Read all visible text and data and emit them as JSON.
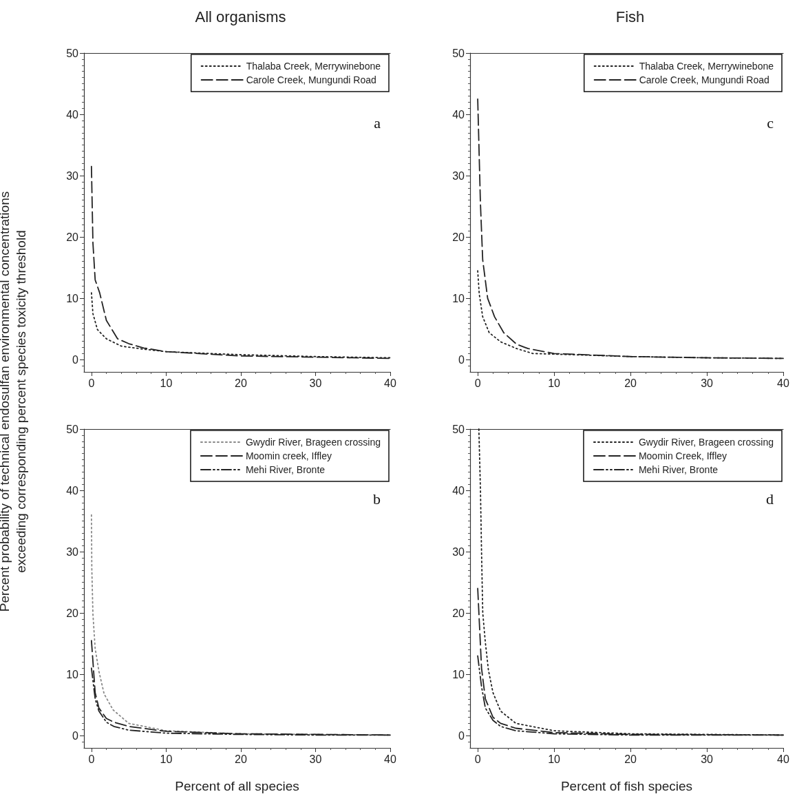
{
  "chart_data": [
    {
      "type": "line",
      "title": "All organisms",
      "ylabel": "Percent probability of technical endosulfan environmental concentrations\nexceeding corresponding percent species toxicity threshold",
      "annotations": [
        "a"
      ],
      "xlim": [
        -1,
        40
      ],
      "ylim": [
        -2,
        50
      ],
      "xticks": [
        0,
        10,
        20,
        30,
        40
      ],
      "yticks": [
        0,
        10,
        20,
        30,
        40,
        50
      ],
      "grid": false,
      "legend": "top right",
      "marker": "none",
      "series": [
        {
          "name": "Thalaba Creek, Merrywinebone",
          "color": "#222222",
          "line_style": "dotted",
          "x": [
            0,
            0.2,
            0.8,
            2,
            4,
            7,
            10,
            20,
            30,
            40
          ],
          "values": [
            10.9,
            7.5,
            4.9,
            3.4,
            2.2,
            1.7,
            1.3,
            0.8,
            0.5,
            0.3
          ]
        },
        {
          "name": "Carole Creek, Mungundi Road",
          "color": "#222222",
          "line_style": "dashed",
          "x": [
            0,
            0.2,
            0.5,
            1.1,
            2,
            3.5,
            5,
            7,
            10,
            20,
            30,
            40
          ],
          "values": [
            31.5,
            19,
            13,
            10.9,
            6.4,
            3.4,
            2.6,
            1.9,
            1.3,
            0.6,
            0.4,
            0.2
          ]
        }
      ]
    },
    {
      "type": "line",
      "title": "Fish",
      "annotations": [
        "c"
      ],
      "xlim": [
        -1,
        40
      ],
      "ylim": [
        -2,
        50
      ],
      "xticks": [
        0,
        10,
        20,
        30,
        40
      ],
      "yticks": [
        0,
        10,
        20,
        30,
        40,
        50
      ],
      "grid": false,
      "legend": "top right",
      "marker": "none",
      "series": [
        {
          "name": "Thalaba Creek, Merrywinebone",
          "color": "#222222",
          "line_style": "dotted",
          "x": [
            0,
            0.2,
            0.65,
            1.5,
            3,
            5.1,
            7.2,
            10,
            20,
            30,
            40
          ],
          "values": [
            14.5,
            10.7,
            7,
            4.4,
            2.9,
            1.8,
            1.0,
            0.9,
            0.5,
            0.3,
            0.2
          ]
        },
        {
          "name": "Carole Creek, Mungundi Road",
          "color": "#222222",
          "line_style": "dashed",
          "x": [
            0,
            0.35,
            0.65,
            1.3,
            2.2,
            3.4,
            5.1,
            6.6,
            10,
            20,
            30,
            40
          ],
          "values": [
            42.5,
            25.7,
            16.3,
            10,
            7,
            4.4,
            2.5,
            1.8,
            1.0,
            0.5,
            0.3,
            0.2
          ]
        }
      ]
    },
    {
      "type": "line",
      "xlabel": "Percent of all species",
      "annotations": [
        "b"
      ],
      "xlim": [
        -1,
        40
      ],
      "ylim": [
        -2,
        50
      ],
      "xticks": [
        0,
        10,
        20,
        30,
        40
      ],
      "yticks": [
        0,
        10,
        20,
        30,
        40,
        50
      ],
      "grid": false,
      "legend": "top right",
      "marker": "none",
      "series": [
        {
          "name": "Gwydir River, Brageen crossing",
          "color": "#888888",
          "line_style": "dotted",
          "x": [
            0,
            0.05,
            0.2,
            0.5,
            1,
            1.7,
            2.9,
            5,
            10,
            20,
            30,
            40
          ],
          "values": [
            36,
            27.3,
            19.8,
            14.2,
            10.5,
            6.8,
            4.2,
            2,
            0.8,
            0.3,
            0.2,
            0.1
          ]
        },
        {
          "name": "Moomin creek, Iffley",
          "color": "#222222",
          "line_style": "dashed",
          "x": [
            0,
            0.5,
            1,
            2,
            3,
            5,
            10,
            20,
            30,
            40
          ],
          "values": [
            15.5,
            7,
            4.5,
            2.8,
            2.2,
            1.5,
            0.7,
            0.3,
            0.2,
            0.1
          ]
        },
        {
          "name": "Mehi River, Bronte",
          "color": "#222222",
          "line_style": "dashdot",
          "x": [
            0,
            0.5,
            1,
            2,
            3,
            5,
            10,
            20,
            30,
            40
          ],
          "values": [
            11,
            6,
            4,
            2.2,
            1.5,
            0.9,
            0.4,
            0.2,
            0.1,
            0.1
          ]
        }
      ]
    },
    {
      "type": "line",
      "xlabel": "Percent of fish species",
      "annotations": [
        "d"
      ],
      "xlim": [
        -1,
        40
      ],
      "ylim": [
        -2,
        50
      ],
      "xticks": [
        0,
        10,
        20,
        30,
        40
      ],
      "yticks": [
        0,
        10,
        20,
        30,
        40,
        50
      ],
      "grid": false,
      "legend": "top right",
      "marker": "none",
      "series": [
        {
          "name": "Gwydir River, Brageen crossing",
          "color": "#222222",
          "line_style": "dotted",
          "x": [
            0.15,
            0.36,
            0.5,
            0.66,
            1,
            1.4,
            2,
            3,
            5,
            10,
            20,
            40
          ],
          "values": [
            50,
            40,
            30,
            20,
            15.2,
            10.7,
            7,
            4,
            2,
            0.8,
            0.3,
            0.1
          ]
        },
        {
          "name": "Moomin Creek, Iffley",
          "color": "#222222",
          "line_style": "dashed",
          "x": [
            0,
            0.5,
            1,
            2,
            3,
            5,
            10,
            20,
            40
          ],
          "values": [
            24,
            11,
            6,
            3,
            2,
            1.2,
            0.5,
            0.2,
            0.1
          ]
        },
        {
          "name": "Mehi River, Bronte",
          "color": "#222222",
          "line_style": "dashdot",
          "x": [
            0,
            0.5,
            1,
            2,
            3,
            5,
            10,
            20,
            40
          ],
          "values": [
            13,
            8,
            4.5,
            2.5,
            1.5,
            0.8,
            0.3,
            0.1,
            0.1
          ]
        }
      ]
    }
  ]
}
